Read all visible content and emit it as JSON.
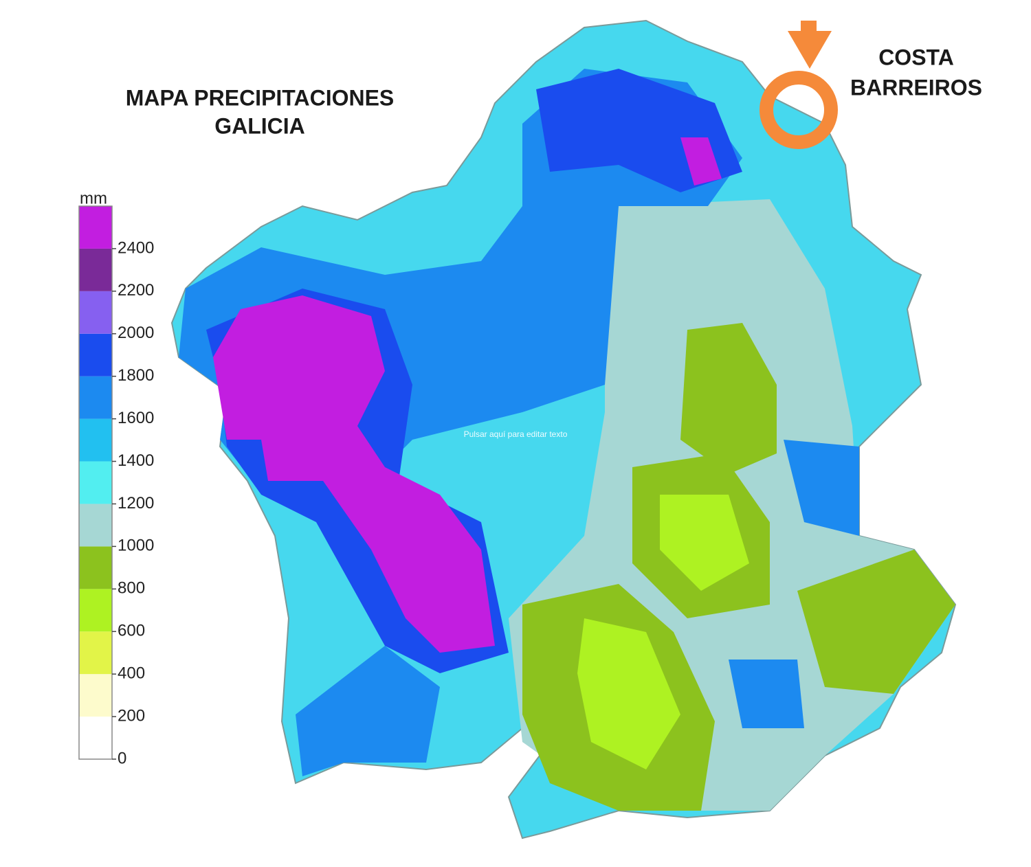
{
  "title": [
    "MAPA PRECIPITACIONES",
    "GALICIA"
  ],
  "marker": {
    "label": [
      "COSTA",
      "BARREIROS"
    ],
    "color": "#f58a3a"
  },
  "overlay_text": "Pulsar aquí para editar texto",
  "legend": {
    "unit": "mm",
    "range": [
      0,
      2600
    ],
    "ticks": [
      0,
      200,
      400,
      600,
      800,
      1000,
      1200,
      1400,
      1600,
      1800,
      2000,
      2200,
      2400
    ],
    "colors": [
      "#ffffff",
      "#fdfbcc",
      "#e2f448",
      "#aef222",
      "#8cc21e",
      "#a6d7d4",
      "#52eef0",
      "#22c0f0",
      "#1c8af0",
      "#1a4cee",
      "#8660f0",
      "#7a2a98",
      "#c21ee0"
    ]
  }
}
